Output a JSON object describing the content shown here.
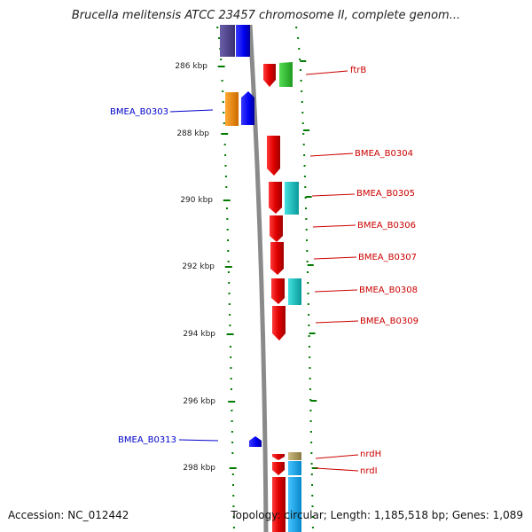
{
  "title": "Brucella melitensis ATCC 23457 chromosome II, complete genom...",
  "accession": "Accession: NC_012442",
  "topology": "Topology: circular; Length: 1,185,518 bp; Genes: 1,089",
  "scale_labels": [
    "286 kbp",
    "288 kbp",
    "290 kbp",
    "292 kbp",
    "294 kbp",
    "296 kbp",
    "298 kbp"
  ],
  "gene_labels_left": [
    "BMEA_B0303",
    "BMEA_B0313"
  ],
  "gene_labels_right": [
    "ftrB",
    "BMEA_B0304",
    "BMEA_B0305",
    "BMEA_B0306",
    "BMEA_B0307",
    "BMEA_B0308",
    "BMEA_B0309",
    "nrdH",
    "nrdI"
  ],
  "colors": {
    "left_label": "#0000cc",
    "right_label": "#cc0000",
    "backbone": "#8a8a8a",
    "ticks": "#007a00",
    "gene_red": "#e00000",
    "gene_blue": "#0000ee",
    "gene_navy": "#4b3f8c",
    "gene_green": "#33bb33",
    "gene_cyan": "#11c4c4",
    "gene_orange": "#ee8800",
    "gene_skyblue": "#11aaee",
    "gene_olive": "#b0a060"
  }
}
